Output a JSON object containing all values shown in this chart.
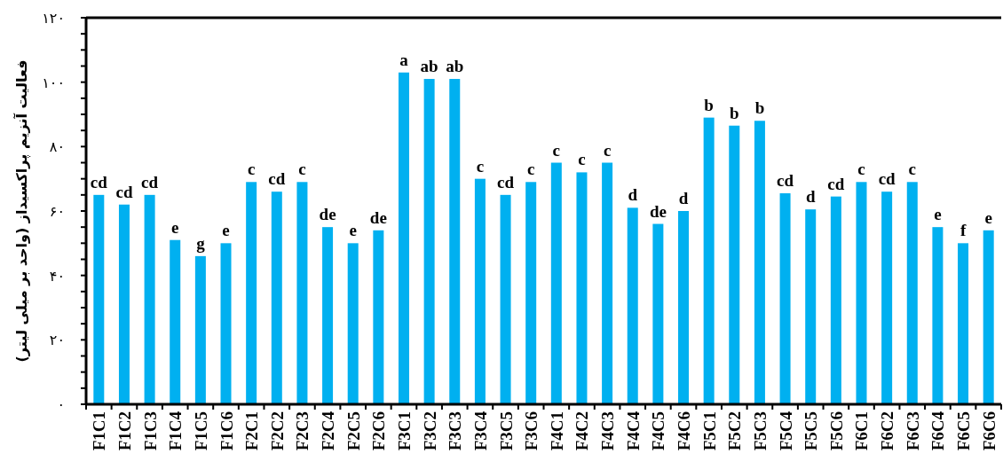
{
  "chart_data": {
    "type": "bar",
    "ylabel": "فعالیت آنزیم پراکسیداز (واحد بر میلی لیتر)",
    "categories": [
      "F1C1",
      "F1C2",
      "F1C3",
      "F1C4",
      "F1C5",
      "F1C6",
      "F2C1",
      "F2C2",
      "F2C3",
      "F2C4",
      "F2C5",
      "F2C6",
      "F3C1",
      "F3C2",
      "F3C3",
      "F3C4",
      "F3C5",
      "F3C6",
      "F4C1",
      "F4C2",
      "F4C3",
      "F4C4",
      "F4C5",
      "F4C6",
      "F5C1",
      "F5C2",
      "F5C3",
      "F5C4",
      "F5C5",
      "F5C6",
      "F6C1",
      "F6C2",
      "F6C3",
      "F6C4",
      "F6C5",
      "F6C6"
    ],
    "values": [
      65,
      62,
      65,
      51,
      46,
      50,
      69,
      66,
      69,
      55,
      50,
      54,
      103,
      101,
      101,
      70,
      65,
      69,
      75,
      72,
      75,
      61,
      56,
      60,
      89,
      86.5,
      88,
      65.5,
      60.5,
      64.5,
      69,
      66,
      69,
      55,
      50,
      54
    ],
    "value_labels": [
      "cd",
      "cd",
      "cd",
      "e",
      "g",
      "e",
      "c",
      "cd",
      "c",
      "de",
      "e",
      "de",
      "a",
      "ab",
      "ab",
      "c",
      "cd",
      "c",
      "c",
      "c",
      "c",
      "d",
      "de",
      "d",
      "b",
      "b",
      "b",
      "cd",
      "d",
      "cd",
      "c",
      "cd",
      "c",
      "e",
      "f",
      "e"
    ],
    "color": "#00b0f0",
    "ylim": [
      0,
      120
    ],
    "yticks": [
      {
        "value": 0,
        "label": "۰"
      },
      {
        "value": 5,
        "label": null
      },
      {
        "value": 10,
        "label": null
      },
      {
        "value": 15,
        "label": null
      },
      {
        "value": 20,
        "label": "۲۰"
      },
      {
        "value": 25,
        "label": null
      },
      {
        "value": 30,
        "label": null
      },
      {
        "value": 35,
        "label": null
      },
      {
        "value": 40,
        "label": "۴۰"
      },
      {
        "value": 45,
        "label": null
      },
      {
        "value": 50,
        "label": null
      },
      {
        "value": 55,
        "label": null
      },
      {
        "value": 60,
        "label": "۶۰"
      },
      {
        "value": 65,
        "label": null
      },
      {
        "value": 70,
        "label": null
      },
      {
        "value": 75,
        "label": null
      },
      {
        "value": 80,
        "label": "۸۰"
      },
      {
        "value": 85,
        "label": null
      },
      {
        "value": 90,
        "label": null
      },
      {
        "value": 95,
        "label": null
      },
      {
        "value": 100,
        "label": "۱۰۰"
      },
      {
        "value": 105,
        "label": null
      },
      {
        "value": 110,
        "label": null
      },
      {
        "value": 115,
        "label": null
      },
      {
        "value": 120,
        "label": "۱۲۰"
      }
    ],
    "grid": false
  }
}
